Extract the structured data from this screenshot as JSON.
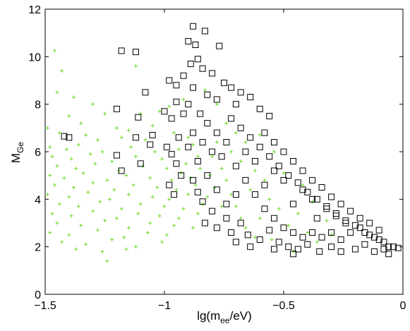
{
  "chart_data": {
    "type": "scatter",
    "title": "",
    "xlabel": {
      "main": "lg(m",
      "sub": "ee",
      "tail": "/eV)"
    },
    "ylabel": {
      "main": "M",
      "sub": "Ge"
    },
    "xlim": [
      -1.5,
      0
    ],
    "ylim": [
      0,
      12
    ],
    "xticks": [
      -1.5,
      -1,
      -0.5,
      0
    ],
    "xtick_labels": [
      "−1.5",
      "−1",
      "−0.5",
      "0"
    ],
    "yticks": [
      0,
      2,
      4,
      6,
      8,
      10,
      12
    ],
    "ytick_labels": [
      "0",
      "2",
      "4",
      "6",
      "8",
      "10",
      "12"
    ],
    "grid": false,
    "legend": "none",
    "series": [
      {
        "marker": "plus",
        "color": "#66dd22",
        "points": [
          [
            -1.46,
            10.25
          ],
          [
            -1.12,
            9.6
          ],
          [
            -1.43,
            9.4
          ],
          [
            -1.45,
            8.5
          ],
          [
            -1.38,
            8.3
          ],
          [
            -1.3,
            8.0
          ],
          [
            -1.25,
            7.6
          ],
          [
            -1.1,
            7.6
          ],
          [
            -1.02,
            7.7
          ],
          [
            -0.98,
            7.9
          ],
          [
            -0.92,
            8.2
          ],
          [
            -0.83,
            8.6
          ],
          [
            -0.78,
            8.0
          ],
          [
            -1.4,
            7.5
          ],
          [
            -1.35,
            7.2
          ],
          [
            -1.2,
            7.0
          ],
          [
            -1.15,
            6.9
          ],
          [
            -1.05,
            7.1
          ],
          [
            -1.49,
            7.0
          ],
          [
            -1.44,
            6.8
          ],
          [
            -1.33,
            6.7
          ],
          [
            -1.28,
            6.5
          ],
          [
            -1.18,
            6.6
          ],
          [
            -1.08,
            6.5
          ],
          [
            -0.96,
            6.8
          ],
          [
            -0.9,
            6.6
          ],
          [
            -1.48,
            6.2
          ],
          [
            -1.41,
            6.1
          ],
          [
            -1.36,
            6.3
          ],
          [
            -1.26,
            6.0
          ],
          [
            -1.14,
            6.2
          ],
          [
            -1.04,
            6.0
          ],
          [
            -0.94,
            6.1
          ],
          [
            -0.88,
            6.3
          ],
          [
            -1.47,
            5.8
          ],
          [
            -1.39,
            5.7
          ],
          [
            -1.31,
            5.9
          ],
          [
            -1.22,
            5.6
          ],
          [
            -1.12,
            5.8
          ],
          [
            -1.01,
            5.7
          ],
          [
            -0.91,
            5.5
          ],
          [
            -0.86,
            5.8
          ],
          [
            -1.45,
            5.4
          ],
          [
            -1.37,
            5.3
          ],
          [
            -1.29,
            5.5
          ],
          [
            -1.19,
            5.2
          ],
          [
            -1.09,
            5.4
          ],
          [
            -0.99,
            5.3
          ],
          [
            -0.93,
            5.1
          ],
          [
            -0.85,
            5.3
          ],
          [
            -1.48,
            5.0
          ],
          [
            -1.42,
            4.9
          ],
          [
            -1.34,
            5.1
          ],
          [
            -1.24,
            4.8
          ],
          [
            -1.16,
            5.0
          ],
          [
            -1.06,
            4.9
          ],
          [
            -0.97,
            4.8
          ],
          [
            -0.89,
            4.9
          ],
          [
            -0.81,
            5.0
          ],
          [
            -1.46,
            4.6
          ],
          [
            -1.38,
            4.5
          ],
          [
            -1.3,
            4.7
          ],
          [
            -1.21,
            4.4
          ],
          [
            -1.13,
            4.6
          ],
          [
            -1.03,
            4.5
          ],
          [
            -0.95,
            4.4
          ],
          [
            -0.87,
            4.6
          ],
          [
            -0.79,
            4.5
          ],
          [
            -1.49,
            4.2
          ],
          [
            -1.4,
            4.1
          ],
          [
            -1.32,
            4.3
          ],
          [
            -1.23,
            4.0
          ],
          [
            -1.15,
            4.2
          ],
          [
            -1.05,
            4.1
          ],
          [
            -0.98,
            4.0
          ],
          [
            -0.9,
            4.2
          ],
          [
            -0.82,
            4.1
          ],
          [
            -1.44,
            3.8
          ],
          [
            -1.36,
            3.7
          ],
          [
            -1.27,
            3.9
          ],
          [
            -1.18,
            3.6
          ],
          [
            -1.1,
            3.8
          ],
          [
            -1.0,
            3.7
          ],
          [
            -0.92,
            3.6
          ],
          [
            -0.84,
            3.8
          ],
          [
            -0.76,
            3.7
          ],
          [
            -1.47,
            3.4
          ],
          [
            -1.39,
            3.3
          ],
          [
            -1.3,
            3.5
          ],
          [
            -1.2,
            3.2
          ],
          [
            -1.11,
            3.4
          ],
          [
            -1.02,
            3.3
          ],
          [
            -0.94,
            3.2
          ],
          [
            -0.86,
            3.4
          ],
          [
            -1.45,
            3.0
          ],
          [
            -1.35,
            2.9
          ],
          [
            -1.25,
            3.1
          ],
          [
            -1.15,
            2.8
          ],
          [
            -1.06,
            3.0
          ],
          [
            -0.96,
            2.9
          ],
          [
            -0.88,
            2.8
          ],
          [
            -1.48,
            2.6
          ],
          [
            -1.4,
            2.5
          ],
          [
            -1.28,
            2.7
          ],
          [
            -1.17,
            2.4
          ],
          [
            -1.07,
            2.6
          ],
          [
            -0.99,
            2.5
          ],
          [
            -1.43,
            2.2
          ],
          [
            -1.33,
            2.1
          ],
          [
            -1.22,
            2.3
          ],
          [
            -1.12,
            2.0
          ],
          [
            -1.01,
            2.2
          ],
          [
            -1.37,
            1.9
          ],
          [
            -1.26,
            1.8
          ],
          [
            -1.16,
            1.9
          ],
          [
            -1.24,
            1.4
          ],
          [
            -0.74,
            7.2
          ],
          [
            -0.7,
            6.8
          ],
          [
            -0.66,
            6.4
          ],
          [
            -0.72,
            6.0
          ],
          [
            -0.68,
            5.6
          ],
          [
            -0.62,
            5.2
          ],
          [
            -0.58,
            4.8
          ],
          [
            -0.64,
            4.4
          ],
          [
            -0.56,
            4.0
          ],
          [
            -0.52,
            3.6
          ],
          [
            -0.6,
            3.2
          ],
          [
            -0.48,
            2.9
          ],
          [
            -0.44,
            3.4
          ],
          [
            -0.4,
            2.6
          ],
          [
            -0.55,
            2.3
          ],
          [
            -0.46,
            1.8
          ],
          [
            -0.36,
            2.2
          ],
          [
            -0.3,
            2.5
          ],
          [
            -0.42,
            4.6
          ],
          [
            -0.5,
            5.1
          ],
          [
            -0.38,
            3.9
          ],
          [
            -0.32,
            3.1
          ],
          [
            -0.78,
            6.4
          ],
          [
            -0.8,
            5.8
          ],
          [
            -0.76,
            5.3
          ],
          [
            -0.74,
            4.8
          ],
          [
            -0.72,
            4.2
          ],
          [
            -0.7,
            3.7
          ],
          [
            -0.68,
            3.2
          ],
          [
            -0.66,
            2.8
          ],
          [
            -0.62,
            2.4
          ],
          [
            -0.54,
            6.0
          ],
          [
            -0.6,
            6.7
          ]
        ]
      },
      {
        "marker": "square",
        "color": "#000000",
        "points": [
          [
            -0.88,
            11.28
          ],
          [
            -0.83,
            11.08
          ],
          [
            -0.9,
            10.65
          ],
          [
            -0.87,
            10.5
          ],
          [
            -1.18,
            10.25
          ],
          [
            -1.12,
            10.2
          ],
          [
            -0.77,
            10.45
          ],
          [
            -0.98,
            9.0
          ],
          [
            -0.86,
            9.9
          ],
          [
            -0.89,
            9.7
          ],
          [
            -0.84,
            9.5
          ],
          [
            -0.8,
            9.3
          ],
          [
            -0.92,
            9.2
          ],
          [
            -0.95,
            8.8
          ],
          [
            -0.88,
            8.7
          ],
          [
            -1.08,
            8.5
          ],
          [
            -0.75,
            8.9
          ],
          [
            -0.72,
            8.7
          ],
          [
            -0.68,
            8.5
          ],
          [
            -0.82,
            8.4
          ],
          [
            -0.78,
            8.2
          ],
          [
            -0.95,
            8.1
          ],
          [
            -0.9,
            8.0
          ],
          [
            -1.0,
            7.7
          ],
          [
            -1.2,
            7.8
          ],
          [
            -1.11,
            7.45
          ],
          [
            -0.97,
            7.4
          ],
          [
            -0.92,
            7.6
          ],
          [
            -0.7,
            8.0
          ],
          [
            -0.64,
            8.3
          ],
          [
            -0.6,
            7.8
          ],
          [
            -0.56,
            7.5
          ],
          [
            -1.12,
            6.6
          ],
          [
            -1.05,
            6.7
          ],
          [
            -1.42,
            6.65
          ],
          [
            -1.4,
            6.6
          ],
          [
            -1.06,
            6.3
          ],
          [
            -1.2,
            5.85
          ],
          [
            -1.1,
            5.5
          ],
          [
            -1.18,
            5.2
          ],
          [
            -0.97,
            5.9
          ],
          [
            -0.95,
            5.5
          ],
          [
            -0.93,
            5.0
          ],
          [
            -0.98,
            4.6
          ],
          [
            -0.96,
            4.2
          ],
          [
            -0.88,
            4.8
          ],
          [
            -0.86,
            4.3
          ],
          [
            -0.84,
            3.9
          ],
          [
            -0.8,
            3.5
          ],
          [
            -0.83,
            3.0
          ],
          [
            -0.78,
            2.8
          ],
          [
            -0.74,
            3.2
          ],
          [
            -0.72,
            2.6
          ],
          [
            -0.68,
            3.0
          ],
          [
            -0.65,
            2.5
          ],
          [
            -0.6,
            2.3
          ],
          [
            -0.56,
            2.7
          ],
          [
            -0.52,
            2.2
          ],
          [
            -0.48,
            2.0
          ],
          [
            -0.44,
            1.9
          ],
          [
            -0.4,
            2.1
          ],
          [
            -0.35,
            1.8
          ],
          [
            -0.3,
            2.0
          ],
          [
            -0.26,
            1.8
          ],
          [
            -0.2,
            1.9
          ],
          [
            -0.16,
            2.1
          ],
          [
            -0.12,
            1.8
          ],
          [
            -0.08,
            1.9
          ],
          [
            -0.06,
            1.7
          ],
          [
            -0.04,
            2.0
          ],
          [
            -0.1,
            2.3
          ],
          [
            -0.14,
            2.5
          ],
          [
            -0.18,
            2.8
          ],
          [
            -0.22,
            2.6
          ],
          [
            -0.24,
            3.0
          ],
          [
            -0.28,
            3.3
          ],
          [
            -0.32,
            3.6
          ],
          [
            -0.36,
            3.2
          ],
          [
            -0.38,
            4.0
          ],
          [
            -0.42,
            4.4
          ],
          [
            -0.46,
            3.8
          ],
          [
            -0.5,
            4.8
          ],
          [
            -0.54,
            5.2
          ],
          [
            -0.58,
            4.6
          ],
          [
            -0.62,
            5.6
          ],
          [
            -0.66,
            6.0
          ],
          [
            -0.7,
            5.4
          ],
          [
            -0.74,
            6.4
          ],
          [
            -0.78,
            6.8
          ],
          [
            -0.76,
            5.8
          ],
          [
            -0.82,
            7.2
          ],
          [
            -0.84,
            6.4
          ],
          [
            -0.8,
            6.0
          ],
          [
            -0.72,
            7.4
          ],
          [
            -0.68,
            7.0
          ],
          [
            -0.64,
            6.6
          ],
          [
            -0.6,
            6.2
          ],
          [
            -0.56,
            5.8
          ],
          [
            -0.52,
            5.4
          ],
          [
            -0.48,
            5.0
          ],
          [
            -0.44,
            4.7
          ],
          [
            -0.4,
            4.3
          ],
          [
            -0.36,
            4.0
          ],
          [
            -0.32,
            3.7
          ],
          [
            -0.28,
            3.4
          ],
          [
            -0.24,
            3.1
          ],
          [
            -0.2,
            2.9
          ],
          [
            -0.16,
            2.6
          ],
          [
            -0.12,
            2.4
          ],
          [
            -0.08,
            2.2
          ],
          [
            -0.66,
            4.8
          ],
          [
            -0.7,
            4.2
          ],
          [
            -0.74,
            3.8
          ],
          [
            -0.62,
            4.2
          ],
          [
            -0.58,
            3.6
          ],
          [
            -0.54,
            3.2
          ],
          [
            -0.5,
            2.8
          ],
          [
            -0.46,
            2.6
          ],
          [
            -0.42,
            2.4
          ],
          [
            -0.38,
            2.6
          ],
          [
            -0.34,
            2.4
          ],
          [
            -0.3,
            2.6
          ],
          [
            -0.26,
            2.3
          ],
          [
            -0.78,
            4.4
          ],
          [
            -0.82,
            5.0
          ],
          [
            -0.86,
            5.6
          ],
          [
            -0.9,
            6.2
          ],
          [
            -0.88,
            6.8
          ],
          [
            -0.85,
            7.6
          ],
          [
            -0.94,
            6.6
          ],
          [
            -0.99,
            6.2
          ],
          [
            -0.58,
            6.8
          ],
          [
            -0.54,
            6.4
          ],
          [
            -0.5,
            6.0
          ],
          [
            -0.46,
            5.6
          ],
          [
            -0.42,
            5.2
          ],
          [
            -0.38,
            4.8
          ],
          [
            -0.34,
            4.5
          ],
          [
            -0.3,
            4.1
          ],
          [
            -0.26,
            3.8
          ],
          [
            -0.22,
            3.5
          ],
          [
            -0.18,
            3.2
          ],
          [
            -0.14,
            3.0
          ],
          [
            -0.1,
            2.7
          ],
          [
            -0.06,
            2.0
          ],
          [
            -0.02,
            1.95
          ],
          [
            -0.46,
            1.7
          ],
          [
            -0.54,
            1.9
          ],
          [
            -0.64,
            2.0
          ],
          [
            -0.7,
            2.2
          ]
        ]
      }
    ]
  }
}
